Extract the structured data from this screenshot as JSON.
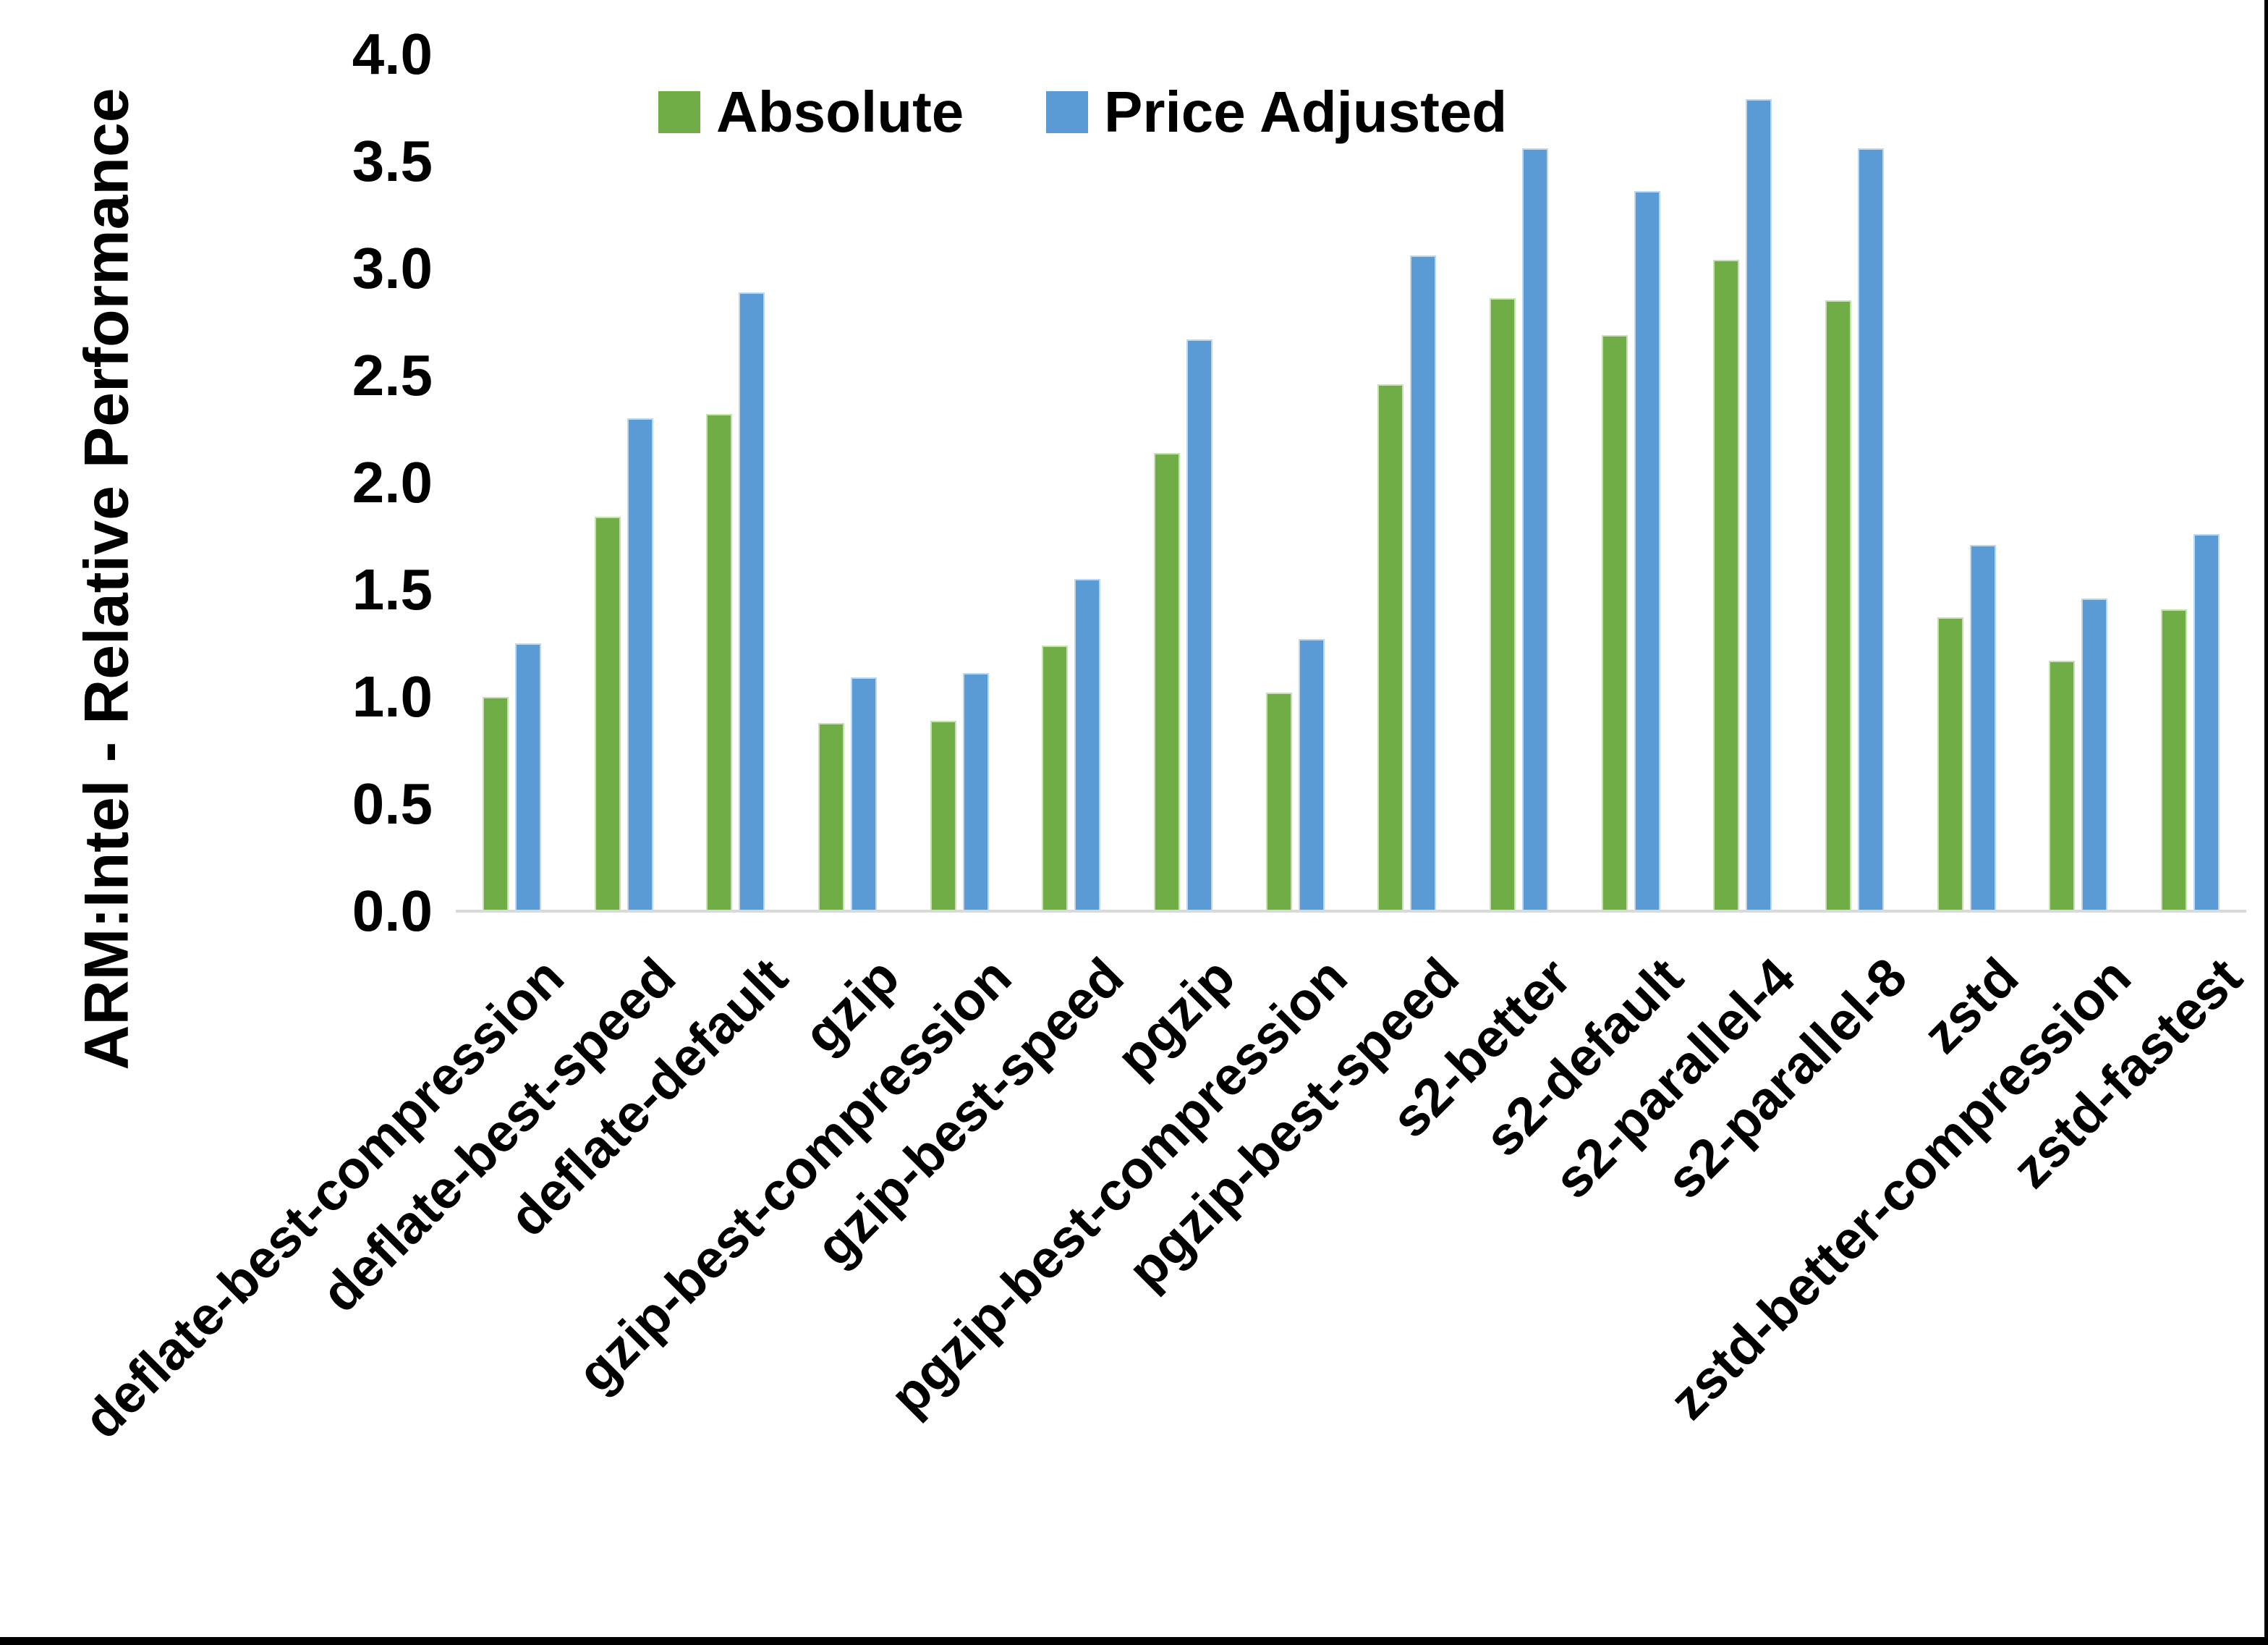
{
  "chart_data": {
    "type": "bar",
    "title": "",
    "xlabel": "",
    "ylabel": "ARM:Intel - Relative Performance",
    "ylim": [
      0.0,
      4.0
    ],
    "ytick_step": 0.5,
    "yticks": [
      "0.0",
      "0.5",
      "1.0",
      "1.5",
      "2.0",
      "2.5",
      "3.0",
      "3.5",
      "4.0"
    ],
    "grid": false,
    "legend_position": "top-center",
    "categories": [
      "deflate-best-compression",
      "deflate-best-speed",
      "deflate-default",
      "gzip",
      "gzip-best-compression",
      "gzip-best-speed",
      "pgzip",
      "pgzip-best-compression",
      "pgzip-best-speed",
      "s2-better",
      "s2-default",
      "s2-parallel-4",
      "s2-parallel-8",
      "zstd",
      "zstd-better-compression",
      "zstd-fastest"
    ],
    "series": [
      {
        "name": "Absolute",
        "color": "#70AD47",
        "border_color": "#c9e0b4",
        "values": [
          1.0,
          1.84,
          2.32,
          0.88,
          0.89,
          1.24,
          2.14,
          1.02,
          2.46,
          2.86,
          2.69,
          3.04,
          2.85,
          1.37,
          1.17,
          1.41
        ]
      },
      {
        "name": "Price Adjusted",
        "color": "#5B9BD5",
        "border_color": "#bdd7ee",
        "values": [
          1.25,
          2.3,
          2.89,
          1.09,
          1.11,
          1.55,
          2.67,
          1.27,
          3.06,
          3.56,
          3.36,
          3.79,
          3.56,
          1.71,
          1.46,
          1.76
        ]
      }
    ],
    "axis_line_color": "#d9d9d9",
    "frame_border_color": "#000000"
  }
}
